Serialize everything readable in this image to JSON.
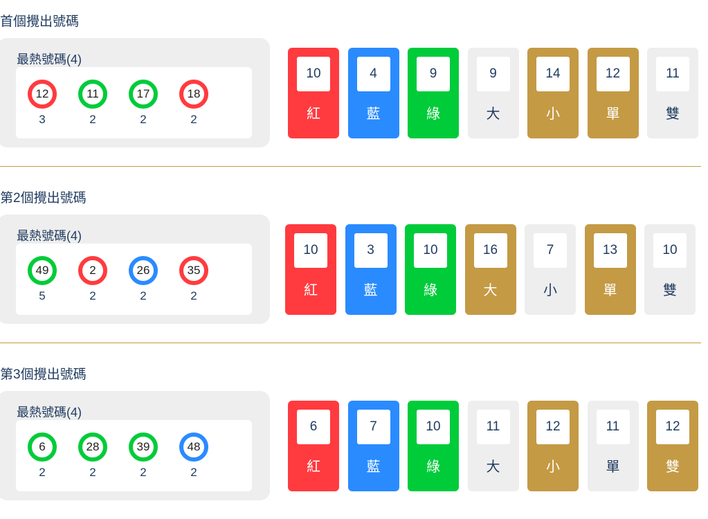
{
  "colors": {
    "red": "#ff3b3f",
    "blue": "#2a8bff",
    "green": "#00cc3a",
    "gold": "#c49a45",
    "off": "#eeeeee"
  },
  "sections": [
    {
      "title": "首個攪出號碼",
      "hot_label": "最熱號碼(4)",
      "balls": [
        {
          "num": "12",
          "count": "3",
          "color": "red"
        },
        {
          "num": "11",
          "count": "2",
          "color": "green"
        },
        {
          "num": "17",
          "count": "2",
          "color": "green"
        },
        {
          "num": "18",
          "count": "2",
          "color": "red"
        }
      ],
      "cards": [
        {
          "count": "10",
          "label": "紅",
          "color": "red"
        },
        {
          "count": "4",
          "label": "藍",
          "color": "blue"
        },
        {
          "count": "9",
          "label": "綠",
          "color": "green"
        },
        {
          "count": "9",
          "label": "大",
          "color": "off"
        },
        {
          "count": "14",
          "label": "小",
          "color": "gold"
        },
        {
          "count": "12",
          "label": "單",
          "color": "gold"
        },
        {
          "count": "11",
          "label": "雙",
          "color": "off"
        }
      ]
    },
    {
      "title": "第2個攪出號碼",
      "hot_label": "最熱號碼(4)",
      "balls": [
        {
          "num": "49",
          "count": "5",
          "color": "green"
        },
        {
          "num": "2",
          "count": "2",
          "color": "red"
        },
        {
          "num": "26",
          "count": "2",
          "color": "blue"
        },
        {
          "num": "35",
          "count": "2",
          "color": "red"
        }
      ],
      "cards": [
        {
          "count": "10",
          "label": "紅",
          "color": "red"
        },
        {
          "count": "3",
          "label": "藍",
          "color": "blue"
        },
        {
          "count": "10",
          "label": "綠",
          "color": "green"
        },
        {
          "count": "16",
          "label": "大",
          "color": "gold"
        },
        {
          "count": "7",
          "label": "小",
          "color": "off"
        },
        {
          "count": "13",
          "label": "單",
          "color": "gold"
        },
        {
          "count": "10",
          "label": "雙",
          "color": "off"
        }
      ]
    },
    {
      "title": "第3個攪出號碼",
      "hot_label": "最熱號碼(4)",
      "balls": [
        {
          "num": "6",
          "count": "2",
          "color": "green"
        },
        {
          "num": "28",
          "count": "2",
          "color": "green"
        },
        {
          "num": "39",
          "count": "2",
          "color": "green"
        },
        {
          "num": "48",
          "count": "2",
          "color": "blue"
        }
      ],
      "cards": [
        {
          "count": "6",
          "label": "紅",
          "color": "red"
        },
        {
          "count": "7",
          "label": "藍",
          "color": "blue"
        },
        {
          "count": "10",
          "label": "綠",
          "color": "green"
        },
        {
          "count": "11",
          "label": "大",
          "color": "off"
        },
        {
          "count": "12",
          "label": "小",
          "color": "gold"
        },
        {
          "count": "11",
          "label": "單",
          "color": "off"
        },
        {
          "count": "12",
          "label": "雙",
          "color": "gold"
        }
      ]
    }
  ]
}
